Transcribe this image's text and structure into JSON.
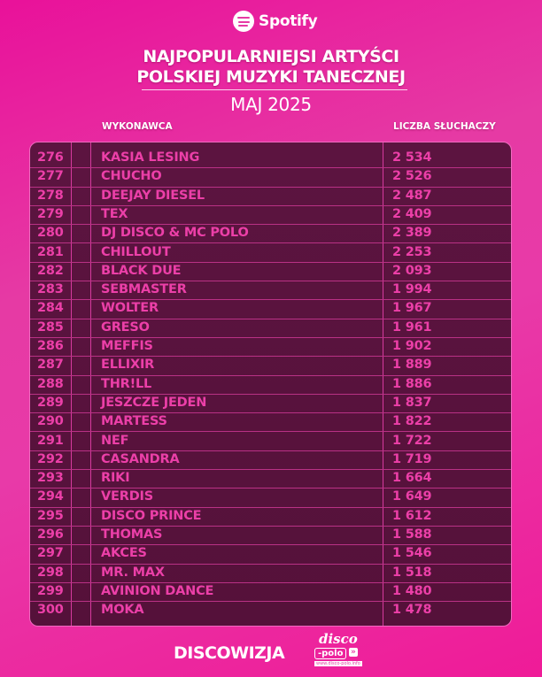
{
  "brand": {
    "name": "Spotify"
  },
  "title": {
    "line1": "NAJPOPULARNIEJSI ARTYŚCI",
    "line2": "POLSKIEJ MUZYKI TANECZNEJ"
  },
  "subtitle": "MAJ 2025",
  "headers": {
    "artist": "WYKONAWCA",
    "listeners": "LICZBA SŁUCHACZY"
  },
  "rows": [
    {
      "rank": "276",
      "artist": "KASIA LESING",
      "listeners": "2 534"
    },
    {
      "rank": "277",
      "artist": "CHUCHO",
      "listeners": "2 526"
    },
    {
      "rank": "278",
      "artist": "DEEJAY DIESEL",
      "listeners": "2 487"
    },
    {
      "rank": "279",
      "artist": "TEX",
      "listeners": "2 409"
    },
    {
      "rank": "280",
      "artist": "DJ DISCO & MC POLO",
      "listeners": "2 389"
    },
    {
      "rank": "281",
      "artist": "CHILLOUT",
      "listeners": "2 253"
    },
    {
      "rank": "282",
      "artist": "BLACK DUE",
      "listeners": "2 093"
    },
    {
      "rank": "283",
      "artist": "SEBMASTER",
      "listeners": "1 994"
    },
    {
      "rank": "284",
      "artist": "WOLTER",
      "listeners": "1 967"
    },
    {
      "rank": "285",
      "artist": "GRESO",
      "listeners": "1 961"
    },
    {
      "rank": "286",
      "artist": "MEFFIS",
      "listeners": "1 902"
    },
    {
      "rank": "287",
      "artist": "ELLIXIR",
      "listeners": "1 889"
    },
    {
      "rank": "288",
      "artist": "THR!LL",
      "listeners": "1 886"
    },
    {
      "rank": "289",
      "artist": "JESZCZE JEDEN",
      "listeners": "1 837"
    },
    {
      "rank": "290",
      "artist": "MARTESS",
      "listeners": "1 822"
    },
    {
      "rank": "291",
      "artist": "NEF",
      "listeners": "1 722"
    },
    {
      "rank": "292",
      "artist": "CASANDRA",
      "listeners": "1 719"
    },
    {
      "rank": "293",
      "artist": "RIKI",
      "listeners": "1 664"
    },
    {
      "rank": "294",
      "artist": "VERDIS",
      "listeners": "1 649"
    },
    {
      "rank": "295",
      "artist": "DISCO PRINCE",
      "listeners": "1 612"
    },
    {
      "rank": "296",
      "artist": "THOMAS",
      "listeners": "1 588"
    },
    {
      "rank": "297",
      "artist": "AKCES",
      "listeners": "1 546"
    },
    {
      "rank": "298",
      "artist": "MR. MAX",
      "listeners": "1 518"
    },
    {
      "rank": "299",
      "artist": "AVINION DANCE",
      "listeners": "1 480"
    },
    {
      "rank": "300",
      "artist": "MOKA",
      "listeners": "1 478"
    }
  ],
  "footer": {
    "left": "DISCOWIZJA",
    "right_logo": {
      "top": "disco",
      "mid": "-polo",
      "arrows": "»",
      "tld": ".info",
      "url": "www.disco-polo.info"
    }
  },
  "colors": {
    "accent": "#ec3fa8",
    "table_bg": "#5c1440",
    "background": "#e63aa4"
  }
}
